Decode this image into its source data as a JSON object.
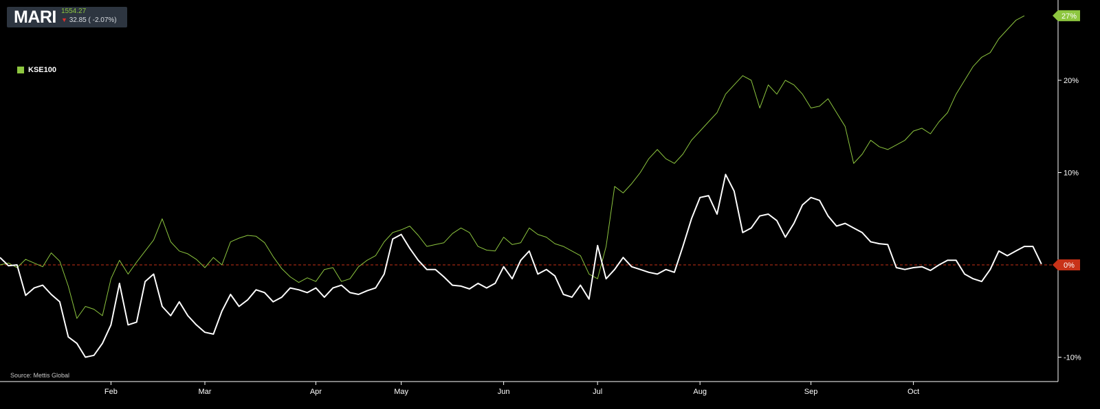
{
  "ticker": {
    "symbol": "MARI",
    "price": "1554.27",
    "change_arrow": "▼",
    "change_text": "32.85 ( -2.07%)",
    "price_color": "#8dc63f",
    "down_color": "#e0302d"
  },
  "source": "Source: Mettis Global",
  "chart_data": {
    "type": "line",
    "title": "",
    "xlabel": "",
    "ylabel": "",
    "y_unit": "%",
    "ylim": [
      -12,
      29
    ],
    "y_ticks": [
      {
        "value": 20,
        "label": "20%"
      },
      {
        "value": 10,
        "label": "10%"
      },
      {
        "value": -10,
        "label": "-10%"
      }
    ],
    "x_ticks": [
      {
        "index": 13,
        "label": "Feb"
      },
      {
        "index": 24,
        "label": "Mar"
      },
      {
        "index": 37,
        "label": "Apr"
      },
      {
        "index": 47,
        "label": "May"
      },
      {
        "index": 59,
        "label": "Jun"
      },
      {
        "index": 70,
        "label": "Jul"
      },
      {
        "index": 82,
        "label": "Aug"
      },
      {
        "index": 95,
        "label": "Sep"
      },
      {
        "index": 107,
        "label": "Oct"
      }
    ],
    "reference_line": {
      "value": 0,
      "label": "0%",
      "color": "#c83218"
    },
    "end_label": {
      "label": "27%",
      "color": "#8dc63f"
    },
    "legend_position": "top-left",
    "series": [
      {
        "name": "KSE100",
        "color": "#8dc63f",
        "legend": true,
        "values": [
          0,
          0.2,
          -0.3,
          0.6,
          0.2,
          -0.2,
          1.3,
          0.4,
          -2.3,
          -5.8,
          -4.5,
          -4.8,
          -5.5,
          -1.5,
          0.5,
          -1.0,
          0.3,
          1.5,
          2.7,
          5.0,
          2.5,
          1.5,
          1.2,
          0.6,
          -0.3,
          0.8,
          0.0,
          2.5,
          2.9,
          3.2,
          3.1,
          2.4,
          0.9,
          -0.4,
          -1.3,
          -1.9,
          -1.4,
          -1.8,
          -0.5,
          -0.3,
          -1.8,
          -1.5,
          -0.2,
          0.5,
          1.0,
          2.5,
          3.5,
          3.8,
          4.2,
          3.2,
          2.0,
          2.2,
          2.4,
          3.4,
          4.0,
          3.5,
          2.0,
          1.6,
          1.5,
          3.0,
          2.2,
          2.4,
          4.0,
          3.3,
          3.0,
          2.3,
          2.0,
          1.5,
          1.0,
          -1.0,
          -1.5,
          2.0,
          8.5,
          7.8,
          8.8,
          10.0,
          11.5,
          12.5,
          11.5,
          11.0,
          12.0,
          13.5,
          14.5,
          15.5,
          16.5,
          18.5,
          19.5,
          20.5,
          20.0,
          17.0,
          19.5,
          18.5,
          20.0,
          19.5,
          18.5,
          17.0,
          17.2,
          18.0,
          16.5,
          15.0,
          11.0,
          12.0,
          13.5,
          12.8,
          12.5,
          13.0,
          13.5,
          14.5,
          14.8,
          14.2,
          15.5,
          16.5,
          18.5,
          20.0,
          21.5,
          22.5,
          23.0,
          24.5,
          25.5,
          26.5,
          27.0
        ]
      },
      {
        "name": "MARI",
        "color": "#ffffff",
        "legend": false,
        "values": [
          0.8,
          -0.1,
          0.0,
          -3.3,
          -2.5,
          -2.2,
          -3.2,
          -4.0,
          -7.8,
          -8.5,
          -10.0,
          -9.8,
          -8.5,
          -6.5,
          -2.0,
          -6.5,
          -6.2,
          -1.8,
          -1.0,
          -4.5,
          -5.5,
          -4.0,
          -5.5,
          -6.5,
          -7.3,
          -7.5,
          -5.0,
          -3.2,
          -4.5,
          -3.8,
          -2.7,
          -3.0,
          -4.0,
          -3.5,
          -2.5,
          -2.7,
          -3.0,
          -2.5,
          -3.5,
          -2.5,
          -2.2,
          -3.0,
          -3.2,
          -2.8,
          -2.5,
          -1.0,
          2.8,
          3.3,
          1.8,
          0.5,
          -0.5,
          -0.5,
          -1.3,
          -2.2,
          -2.3,
          -2.6,
          -2.0,
          -2.5,
          -2.0,
          -0.2,
          -1.5,
          0.5,
          1.5,
          -1.0,
          -0.5,
          -1.2,
          -3.2,
          -3.5,
          -2.2,
          -3.7,
          2.1,
          -1.5,
          -0.5,
          0.8,
          -0.2,
          -0.5,
          -0.8,
          -1.0,
          -0.5,
          -0.8,
          2.0,
          5.0,
          7.3,
          7.5,
          5.5,
          9.8,
          8.0,
          3.5,
          4.0,
          5.3,
          5.5,
          4.8,
          3.0,
          4.5,
          6.5,
          7.3,
          7.0,
          5.3,
          4.2,
          4.5,
          4.0,
          3.5,
          2.5,
          2.3,
          2.2,
          -0.3,
          -0.5,
          -0.3,
          -0.2,
          -0.6,
          0.0,
          0.5,
          0.5,
          -1.0,
          -1.5,
          -1.8,
          -0.5,
          1.5,
          1.0,
          1.5,
          2.0,
          2.0,
          0.1
        ]
      }
    ]
  }
}
